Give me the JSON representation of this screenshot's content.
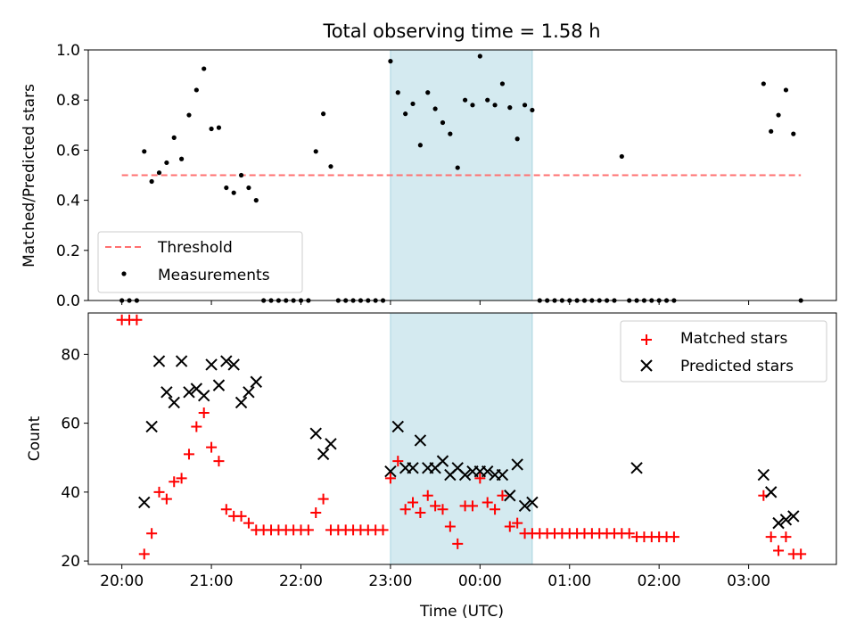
{
  "chart_data": [
    {
      "type": "scatter",
      "title": "Total observing time = 1.58 h",
      "ylabel": "Matched/Predicted stars",
      "xlabel": "",
      "ylim": [
        0.0,
        1.0
      ],
      "yticks": [
        "0.0",
        "0.2",
        "0.4",
        "0.6",
        "0.8",
        "1.0"
      ],
      "xlim_hours": [
        -0.375,
        7.98
      ],
      "xticks": [
        "20:00",
        "21:00",
        "22:00",
        "23:00",
        "00:00",
        "01:00",
        "02:00",
        "03:00"
      ],
      "highlight": {
        "from": "23:00",
        "to": "00:35",
        "color": "#d4eaf0"
      },
      "threshold": {
        "value": 0.5,
        "from": "20:00",
        "to": "03:35",
        "color": "#ff7070"
      },
      "legend": {
        "placement": "lower-left",
        "entries": [
          "Threshold",
          "Measurements"
        ]
      },
      "series": [
        {
          "name": "Measurements",
          "color": "#000000",
          "x": [
            "20:00",
            "20:05",
            "20:10",
            "20:15",
            "20:20",
            "20:25",
            "20:30",
            "20:35",
            "20:40",
            "20:45",
            "20:50",
            "20:55",
            "21:00",
            "21:05",
            "21:10",
            "21:15",
            "21:20",
            "21:25",
            "21:30",
            "21:35",
            "21:40",
            "21:45",
            "21:50",
            "21:55",
            "22:00",
            "22:05",
            "22:10",
            "22:15",
            "22:20",
            "22:25",
            "22:30",
            "22:35",
            "22:40",
            "22:45",
            "22:50",
            "22:55",
            "23:00",
            "23:05",
            "23:10",
            "23:15",
            "23:20",
            "23:25",
            "23:30",
            "23:35",
            "23:40",
            "23:45",
            "23:50",
            "23:55",
            "00:00",
            "00:05",
            "00:10",
            "00:15",
            "00:20",
            "00:25",
            "00:30",
            "00:35",
            "00:40",
            "00:45",
            "00:50",
            "00:55",
            "01:00",
            "01:05",
            "01:10",
            "01:15",
            "01:20",
            "01:25",
            "01:30",
            "01:35",
            "01:40",
            "01:45",
            "01:50",
            "01:55",
            "02:00",
            "02:05",
            "02:10",
            "03:10",
            "03:15",
            "03:20",
            "03:25",
            "03:30",
            "03:35"
          ],
          "y": [
            0,
            0,
            0,
            0.595,
            0.475,
            0.51,
            0.55,
            0.65,
            0.565,
            0.74,
            0.84,
            0.925,
            0.685,
            0.69,
            0.45,
            0.43,
            0.5,
            0.45,
            0.4,
            0,
            0,
            0,
            0,
            0,
            0,
            0,
            0.595,
            0.745,
            0.535,
            0,
            0,
            0,
            0,
            0,
            0,
            0,
            0.955,
            0.83,
            0.745,
            0.785,
            0.62,
            0.83,
            0.765,
            0.71,
            0.665,
            0.53,
            0.8,
            0.78,
            0.975,
            0.8,
            0.78,
            0.865,
            0.77,
            0.645,
            0.78,
            0.76,
            0,
            0,
            0,
            0,
            0,
            0,
            0,
            0,
            0,
            0,
            0,
            0.575,
            0,
            0,
            0,
            0,
            0,
            0,
            0,
            0.865,
            0.675,
            0.74,
            0.84,
            0.665,
            0
          ]
        }
      ]
    },
    {
      "type": "scatter",
      "title": "",
      "xlabel": "Time (UTC)",
      "ylabel": "Count",
      "ylim": [
        19,
        92
      ],
      "yticks": [
        "20",
        "40",
        "60",
        "80"
      ],
      "xlim_hours": [
        -0.375,
        7.98
      ],
      "xticks": [
        "20:00",
        "21:00",
        "22:00",
        "23:00",
        "00:00",
        "01:00",
        "02:00",
        "03:00"
      ],
      "highlight": {
        "from": "23:00",
        "to": "00:35",
        "color": "#d4eaf0"
      },
      "legend": {
        "placement": "top-right",
        "entries": [
          "Matched stars",
          "Predicted stars"
        ]
      },
      "series": [
        {
          "name": "Matched stars",
          "marker": "plus",
          "color": "#ff0000",
          "x": [
            "20:00",
            "20:05",
            "20:10",
            "20:15",
            "20:20",
            "20:25",
            "20:30",
            "20:35",
            "20:40",
            "20:45",
            "20:50",
            "20:55",
            "21:00",
            "21:05",
            "21:10",
            "21:15",
            "21:20",
            "21:25",
            "21:30",
            "21:35",
            "21:40",
            "21:45",
            "21:50",
            "21:55",
            "22:00",
            "22:05",
            "22:10",
            "22:15",
            "22:20",
            "22:25",
            "22:30",
            "22:35",
            "22:40",
            "22:45",
            "22:50",
            "22:55",
            "23:00",
            "23:05",
            "23:10",
            "23:15",
            "23:20",
            "23:25",
            "23:30",
            "23:35",
            "23:40",
            "23:45",
            "23:50",
            "23:55",
            "00:00",
            "00:05",
            "00:10",
            "00:15",
            "00:20",
            "00:25",
            "00:30",
            "00:35",
            "00:40",
            "00:45",
            "00:50",
            "00:55",
            "01:00",
            "01:05",
            "01:10",
            "01:15",
            "01:20",
            "01:25",
            "01:30",
            "01:35",
            "01:40",
            "01:45",
            "01:50",
            "01:55",
            "02:00",
            "02:05",
            "02:10",
            "03:10",
            "03:15",
            "03:20",
            "03:25",
            "03:30",
            "03:35"
          ],
          "y": [
            90,
            90,
            90,
            22,
            28,
            40,
            38,
            43,
            44,
            51,
            59,
            63,
            53,
            49,
            35,
            33,
            33,
            31,
            29,
            29,
            29,
            29,
            29,
            29,
            29,
            29,
            34,
            38,
            29,
            29,
            29,
            29,
            29,
            29,
            29,
            29,
            44,
            49,
            35,
            37,
            34,
            39,
            36,
            35,
            30,
            25,
            36,
            36,
            44,
            37,
            35,
            39,
            30,
            31,
            28,
            28,
            28,
            28,
            28,
            28,
            28,
            28,
            28,
            28,
            28,
            28,
            28,
            28,
            28,
            27,
            27,
            27,
            27,
            27,
            27,
            39,
            27,
            23,
            27,
            22,
            22
          ]
        },
        {
          "name": "Predicted stars",
          "marker": "x",
          "color": "#000000",
          "x": [
            "20:15",
            "20:20",
            "20:25",
            "20:30",
            "20:35",
            "20:40",
            "20:45",
            "20:50",
            "20:55",
            "21:00",
            "21:05",
            "21:10",
            "21:15",
            "21:20",
            "21:25",
            "21:30",
            "22:10",
            "22:15",
            "22:20",
            "23:00",
            "23:05",
            "23:10",
            "23:15",
            "23:20",
            "23:25",
            "23:30",
            "23:35",
            "23:40",
            "23:45",
            "23:50",
            "23:55",
            "00:00",
            "00:05",
            "00:10",
            "00:15",
            "00:20",
            "00:25",
            "00:30",
            "00:35",
            "01:45",
            "03:10",
            "03:15",
            "03:20",
            "03:25",
            "03:30"
          ],
          "y": [
            37,
            59,
            78,
            69,
            66,
            78,
            69,
            70,
            68,
            77,
            71,
            78,
            77,
            66,
            69,
            72,
            57,
            51,
            54,
            46,
            59,
            47,
            47,
            55,
            47,
            47,
            49,
            45,
            47,
            45,
            46,
            46,
            46,
            45,
            45,
            39,
            48,
            36,
            37,
            47,
            45,
            40,
            31,
            32,
            33
          ]
        }
      ]
    }
  ]
}
